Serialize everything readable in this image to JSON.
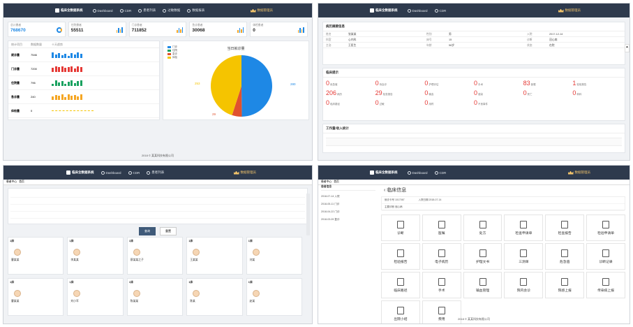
{
  "app": {
    "brand": "临床全数据系统",
    "nav": [
      "Dashboard",
      "CDR",
      "患者列表",
      "过敏数据",
      "数据报表"
    ],
    "user": "数据管理员",
    "footer": "2018 © 某某科技有限公司"
  },
  "dashboard": {
    "stats": [
      {
        "label": "总计患者",
        "value": "768670"
      },
      {
        "label": "住院患者",
        "value": "55511"
      },
      {
        "label": "门诊患者",
        "value": "711852"
      },
      {
        "label": "急诊患者",
        "value": "30068"
      },
      {
        "label": "体检患者",
        "value": "0"
      }
    ],
    "table_headers": [
      "统计项目",
      "数据数量",
      "十天趋势"
    ],
    "rows": [
      {
        "name": "就诊量",
        "value": "7546"
      },
      {
        "name": "门诊量",
        "value": "7200"
      },
      {
        "name": "住院量",
        "value": "796"
      },
      {
        "name": "急诊量",
        "value": "240"
      },
      {
        "name": "体检量",
        "value": "0"
      }
    ],
    "pie_title": "当日就诊量",
    "pie_labels": [
      "253",
      "280",
      "29"
    ],
    "legend": [
      "门诊",
      "住院",
      "急诊",
      "体检"
    ]
  },
  "chart_data": {
    "type": "pie",
    "title": "当日就诊量",
    "slices": [
      {
        "name": "门诊",
        "value": 280,
        "color": "#1e88e5"
      },
      {
        "name": "急诊",
        "value": 29,
        "color": "#e0522e"
      },
      {
        "name": "住院",
        "value": 253,
        "color": "#f5c400"
      }
    ]
  },
  "overview": {
    "section1": "病历摘要信息",
    "kv": [
      [
        "姓名",
        "张某某"
      ],
      [
        "性别",
        "男"
      ],
      [
        "入院",
        "2017-12-14"
      ],
      [
        "科室",
        "心内科"
      ],
      [
        "床号",
        "15"
      ],
      [
        "诊断",
        "冠心病"
      ],
      [
        "主治",
        "王医生"
      ],
      [
        "年龄",
        "56岁"
      ],
      [
        "状态",
        "在院"
      ]
    ],
    "section2": "临床提示",
    "tips": [
      {
        "n": "0",
        "t": "危急值"
      },
      {
        "n": "0",
        "t": "待会诊"
      },
      {
        "n": "0",
        "t": "护理评估"
      },
      {
        "n": "0",
        "t": "手术"
      },
      {
        "n": "83",
        "t": "医嘱"
      },
      {
        "n": "1",
        "t": "检验报告"
      },
      {
        "n": "206",
        "t": "病历"
      },
      {
        "n": "29",
        "t": "检查报告"
      },
      {
        "n": "0",
        "t": "输血"
      },
      {
        "n": "0",
        "t": "感染"
      },
      {
        "n": "0",
        "t": "死亡"
      },
      {
        "n": "0",
        "t": "转科"
      },
      {
        "n": "0",
        "t": "临床路径"
      },
      {
        "n": "0",
        "t": "过敏"
      },
      {
        "n": "0",
        "t": "用药"
      },
      {
        "n": "0",
        "t": "不良事件"
      }
    ],
    "section3": "工作量/收入统计"
  },
  "patients": {
    "tabs": [
      "患者中心",
      "首页"
    ],
    "query_label": "查询",
    "reset_label": "重置",
    "cards": [
      {
        "bed": "1床",
        "name": "曹某某"
      },
      {
        "bed": "1床",
        "name": "李某某"
      },
      {
        "bed": "1床",
        "name": "蔡某某之子"
      },
      {
        "bed": "1床",
        "name": "王某某"
      },
      {
        "bed": "1床",
        "name": "刘某"
      },
      {
        "bed": "1床",
        "name": "曹某某"
      },
      {
        "bed": "1床",
        "name": "刘小军"
      },
      {
        "bed": "1床",
        "name": "陈某某"
      },
      {
        "bed": "1床",
        "name": "陈某"
      },
      {
        "bed": "1床",
        "name": "赵某"
      }
    ]
  },
  "clinical": {
    "title": "临床信息",
    "left_header": "患者信息",
    "info": [
      "就诊卡号 1017067",
      "主要诊断 冠心病",
      "入院日期 2018-07-14"
    ],
    "timeline": [
      "2018-07-14 入院",
      "2018-05-11 门诊",
      "2018-04-22 门诊",
      "2018-03-09 复诊"
    ],
    "tiles": [
      "诊断",
      "医嘱",
      "处方",
      "检查申请单",
      "检查报告",
      "检验申请单",
      "检验报告",
      "电子病历",
      "护理文书",
      "三测单",
      "危急值",
      "诊断记录",
      "临床路径",
      "手术",
      "输血管理",
      "院内会诊",
      "院感上报",
      "传染病上报",
      "出院小结",
      "费用"
    ]
  }
}
